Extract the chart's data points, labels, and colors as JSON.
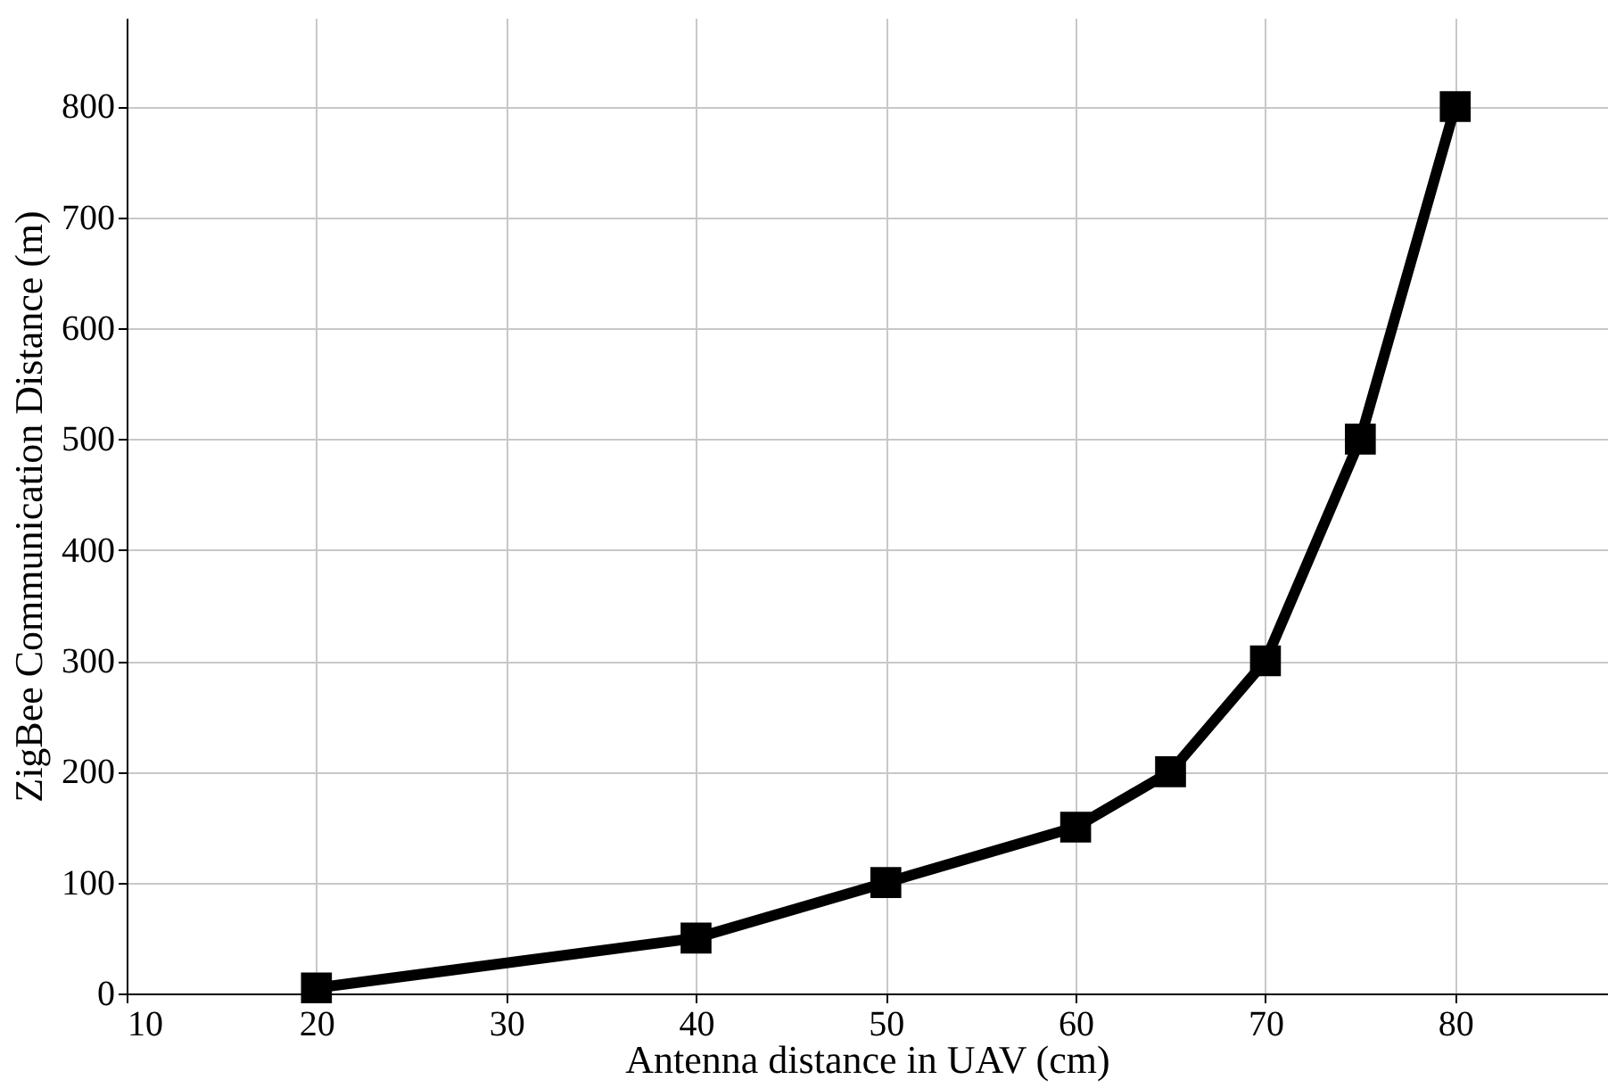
{
  "chart_data": {
    "type": "line",
    "xlabel": "Antenna distance in UAV (cm)",
    "ylabel": "ZigBee Communication Distance (m)",
    "x": [
      20,
      40,
      50,
      60,
      65,
      70,
      75,
      80
    ],
    "series": [
      {
        "color": "#000000",
        "values": [
          5,
          50,
          100,
          150,
          200,
          300,
          500,
          800
        ]
      }
    ],
    "xlim": [
      10,
      88
    ],
    "xticks": [
      10,
      20,
      30,
      40,
      50,
      60,
      70,
      80
    ],
    "ylim": [
      0,
      880
    ],
    "yticks": [
      0,
      100,
      200,
      300,
      400,
      500,
      600,
      700,
      800
    ],
    "grid": true,
    "marker": "square",
    "line_style": "solid"
  }
}
